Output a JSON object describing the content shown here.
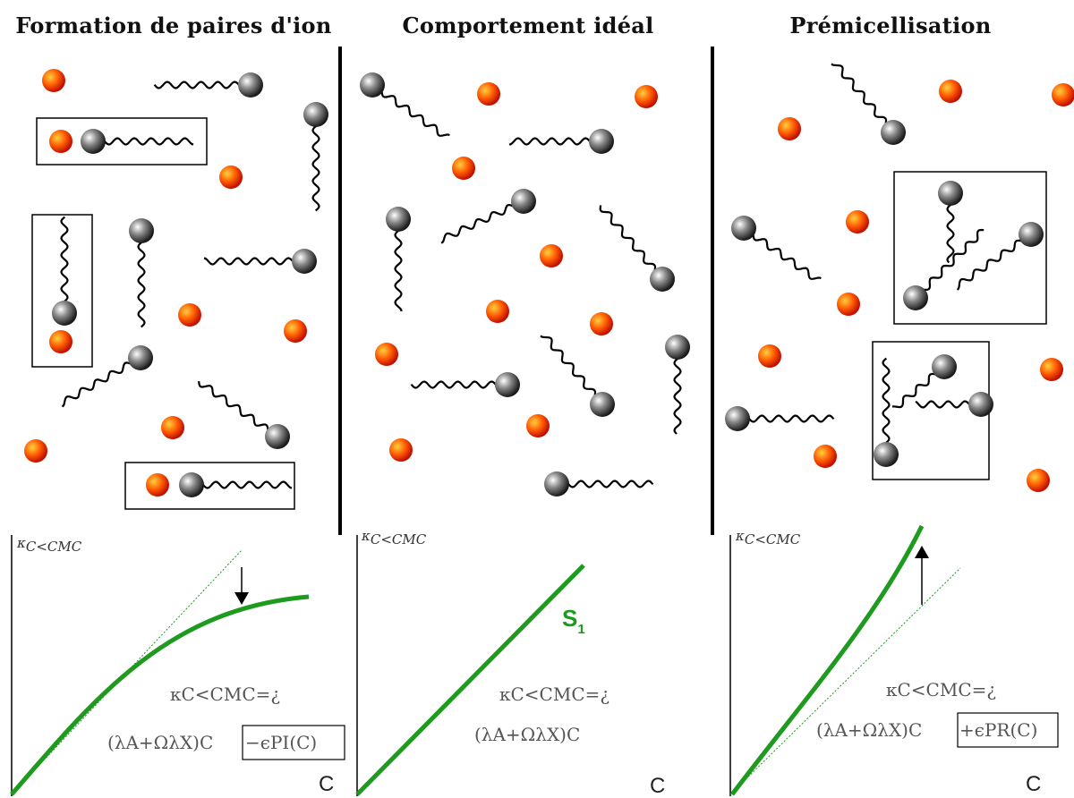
{
  "panels": [
    {
      "title": "Formation de paires d'ion",
      "axis_label": "κ",
      "axis_sub": "C<CMC",
      "c_label": "C",
      "eq_line1": "κC<CMC=¿",
      "eq_line2a": "(λA+ΩλX)C",
      "eq_line2b": "−ϵPI(C)"
    },
    {
      "title": "Comportement idéal",
      "axis_label": "κ",
      "axis_sub": "C<CMC",
      "c_label": "C",
      "curve_label": "S",
      "curve_label_sub": "1",
      "eq_line1": "κC<CMC=¿",
      "eq_line2a": "(λA+ΩλX)C",
      "eq_line2b": ""
    },
    {
      "title": "Prémicellisation",
      "axis_label": "κ",
      "axis_sub": "C<CMC",
      "c_label": "C",
      "eq_line1": "κC<CMC=¿",
      "eq_line2a": "(λA+ΩλX)C",
      "eq_line2b": "+ϵPR(C)"
    }
  ],
  "colors": {
    "curve": "#1e9a1e",
    "ion": "#ff4a00",
    "head": "#555555",
    "divider": "#000000"
  }
}
